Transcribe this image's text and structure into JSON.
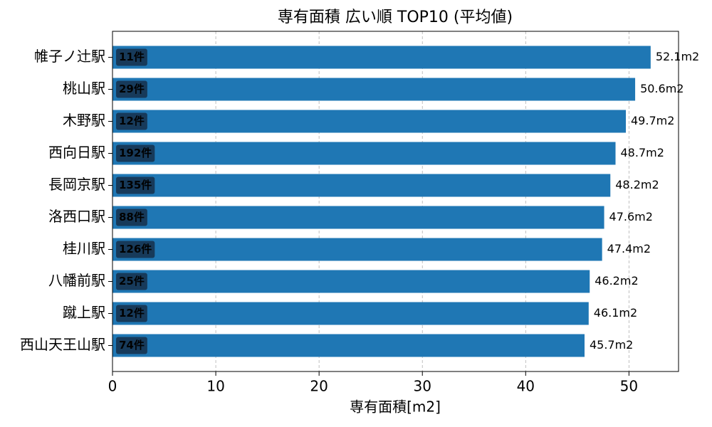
{
  "chart_data": {
    "type": "bar",
    "orientation": "horizontal",
    "title": "専有面積 広い順 TOP10 (平均値)",
    "x_label": "専有面積[m2]",
    "categories": [
      "帷子ノ辻駅",
      "桃山駅",
      "木野駅",
      "西向日駅",
      "長岡京駅",
      "洛西口駅",
      "桂川駅",
      "八幡前駅",
      "蹴上駅",
      "西山天王山駅"
    ],
    "values": [
      52.1,
      50.6,
      49.7,
      48.7,
      48.2,
      47.6,
      47.4,
      46.2,
      46.1,
      45.7
    ],
    "value_labels": [
      "52.1m2",
      "50.6m2",
      "49.7m2",
      "48.7m2",
      "48.2m2",
      "47.6m2",
      "47.4m2",
      "46.2m2",
      "46.1m2",
      "45.7m2"
    ],
    "count_labels": [
      "11件",
      "29件",
      "12件",
      "192件",
      "135件",
      "88件",
      "126件",
      "25件",
      "12件",
      "74件"
    ],
    "color": "#1f77b4",
    "xlim": [
      0,
      54.8
    ],
    "xticks": [
      0,
      10,
      20,
      30,
      40,
      50
    ],
    "grid": true
  }
}
